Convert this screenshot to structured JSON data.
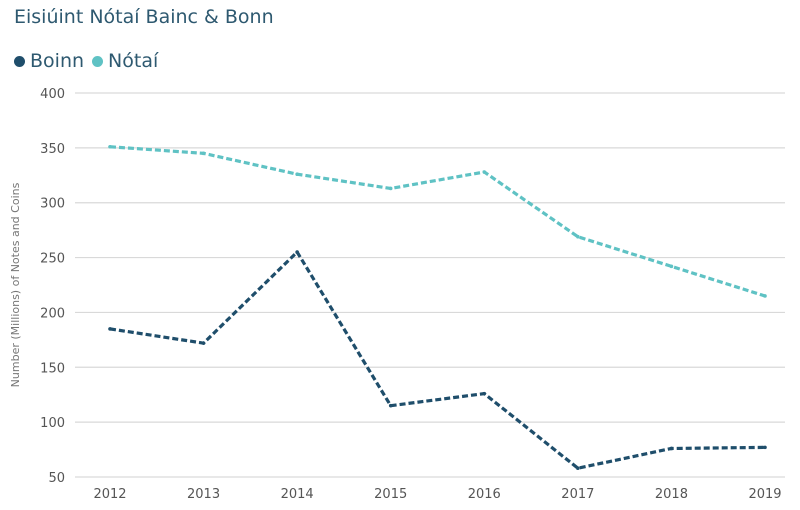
{
  "chart_data": {
    "type": "line",
    "title": "Eisiúint Nótaí Bainc & Bonn",
    "xlabel": "",
    "ylabel": "Number (Millions) of Notes and Coins",
    "x": [
      "2012",
      "2013",
      "2014",
      "2015",
      "2016",
      "2017",
      "2018",
      "2019"
    ],
    "ylim": [
      50,
      400
    ],
    "yticks": [
      50,
      100,
      150,
      200,
      250,
      300,
      350,
      400
    ],
    "grid": true,
    "legend_position": "top-left",
    "series": [
      {
        "name": "Boinn",
        "color": "#1f4e6b",
        "values": [
          185,
          172,
          255,
          115,
          126,
          58,
          76,
          77
        ]
      },
      {
        "name": "Nótaí",
        "color": "#5fc2c4",
        "values": [
          351,
          345,
          326,
          313,
          328,
          269,
          242,
          215
        ]
      }
    ]
  }
}
